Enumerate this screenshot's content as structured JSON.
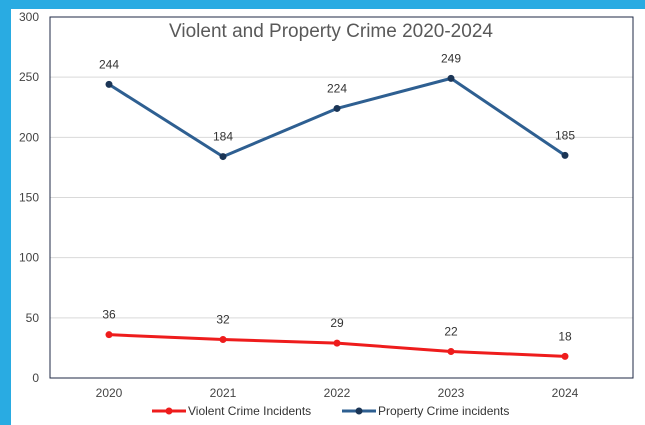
{
  "chart_data": {
    "type": "line",
    "title": "Violent and Property Crime 2020-2024",
    "xlabel": "",
    "ylabel": "",
    "categories": [
      "2020",
      "2021",
      "2022",
      "2023",
      "2024"
    ],
    "ylim": [
      0,
      300
    ],
    "yticks": [
      0,
      50,
      100,
      150,
      200,
      250,
      300
    ],
    "grid": true,
    "legend_position": "bottom",
    "series": [
      {
        "name": "Violent Crime Incidents",
        "values": [
          36,
          32,
          29,
          22,
          18
        ],
        "color": "#ee1c1c"
      },
      {
        "name": "Property Crime incidents",
        "values": [
          244,
          184,
          224,
          249,
          185
        ],
        "color": "#2e5f91"
      }
    ]
  }
}
